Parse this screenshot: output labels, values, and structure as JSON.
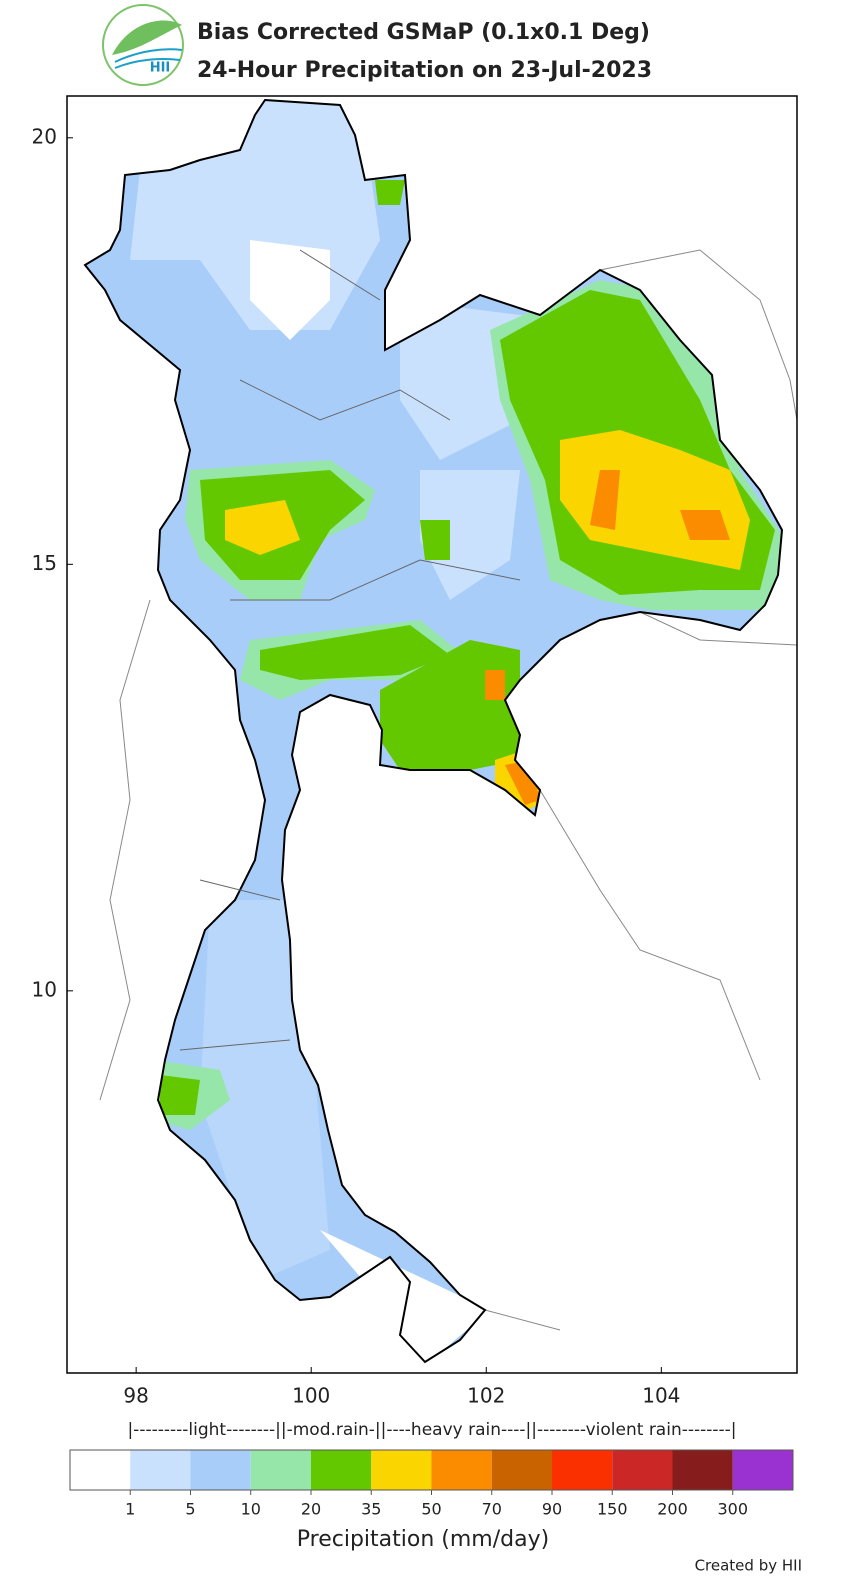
{
  "header": {
    "logo_text": "HII",
    "title": "Bias Corrected GSMaP (0.1x0.1 Deg)",
    "subtitle": "24-Hour Precipitation on 23-Jul-2023"
  },
  "map": {
    "xlim": [
      97.21,
      105.55
    ],
    "ylim": [
      5.52,
      20.49
    ],
    "xticks": [
      98,
      100,
      102,
      104
    ],
    "yticks": [
      20,
      15,
      10
    ]
  },
  "legend": {
    "ranges": "|---------light--------||-mod.rain-||----heavy rain----||--------violent rain--------|",
    "colors": [
      "#ffffff",
      "#c9e1fc",
      "#a9cdf9",
      "#96e6a9",
      "#63c800",
      "#fbd500",
      "#fb8c00",
      "#c96300",
      "#fb3000",
      "#cb2727",
      "#871c1d",
      "#9a32d1"
    ],
    "ticks": [
      1,
      5,
      10,
      20,
      35,
      50,
      70,
      90,
      150,
      200,
      300
    ],
    "xlabel": "Precipitation (mm/day)"
  },
  "footer": {
    "credit": "Created by HII"
  }
}
